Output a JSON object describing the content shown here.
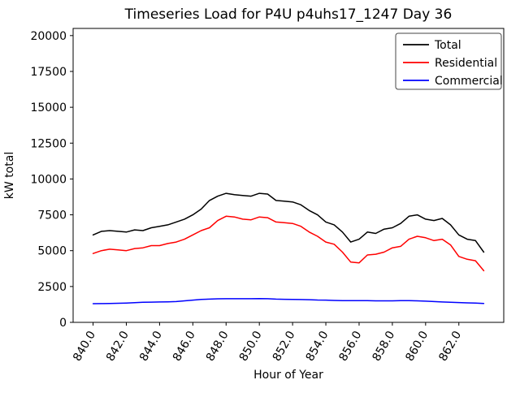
{
  "chart_data": {
    "type": "line",
    "title": "Timeseries Load for P4U p4uhs17_1247  Day 36",
    "xlabel": "Hour of Year",
    "ylabel": "kW total",
    "xlim": [
      838.8,
      864.7
    ],
    "ylim": [
      0,
      20500
    ],
    "grid": false,
    "legend_position": "upper right",
    "x_ticks": [
      840,
      842,
      844,
      846,
      848,
      850,
      852,
      854,
      856,
      858,
      860,
      862
    ],
    "x_tick_labels": [
      "840.0",
      "842.0",
      "844.0",
      "846.0",
      "848.0",
      "850.0",
      "852.0",
      "854.0",
      "856.0",
      "858.0",
      "860.0",
      "862.0"
    ],
    "y_ticks": [
      0,
      2500,
      5000,
      7500,
      10000,
      12500,
      15000,
      17500,
      20000
    ],
    "y_tick_labels": [
      "0",
      "2500",
      "5000",
      "7500",
      "10000",
      "12500",
      "15000",
      "17500",
      "20000"
    ],
    "x": [
      840,
      840.5,
      841,
      841.5,
      842,
      842.5,
      843,
      843.5,
      844,
      844.5,
      845,
      845.5,
      846,
      846.5,
      847,
      847.5,
      848,
      848.5,
      849,
      849.5,
      850,
      850.5,
      851,
      851.5,
      852,
      852.5,
      853,
      853.5,
      854,
      854.5,
      855,
      855.5,
      856,
      856.5,
      857,
      857.5,
      858,
      858.5,
      859,
      859.5,
      860,
      860.5,
      861,
      861.5,
      862,
      862.5,
      863,
      863.5
    ],
    "series": [
      {
        "name": "Total",
        "color": "#000000",
        "values": [
          6100,
          6350,
          6400,
          6350,
          6300,
          6450,
          6400,
          6600,
          6700,
          6800,
          7000,
          7200,
          7500,
          7900,
          8500,
          8800,
          9000,
          8900,
          8850,
          8800,
          9000,
          8950,
          8500,
          8450,
          8400,
          8200,
          7800,
          7500,
          7000,
          6800,
          6300,
          5600,
          5800,
          6300,
          6200,
          6500,
          6600,
          6900,
          7400,
          7500,
          7200,
          7100,
          7250,
          6800,
          6100,
          5800,
          5700,
          4900
        ]
      },
      {
        "name": "Residential",
        "color": "#ff0000",
        "values": [
          4800,
          5000,
          5100,
          5050,
          5000,
          5150,
          5200,
          5350,
          5350,
          5500,
          5600,
          5800,
          6100,
          6400,
          6600,
          7100,
          7400,
          7350,
          7200,
          7150,
          7350,
          7300,
          7000,
          6950,
          6900,
          6700,
          6300,
          6000,
          5600,
          5450,
          4900,
          4200,
          4150,
          4700,
          4750,
          4900,
          5200,
          5300,
          5800,
          6000,
          5900,
          5700,
          5800,
          5400,
          4600,
          4400,
          4300,
          3600
        ]
      },
      {
        "name": "Commercial",
        "color": "#0000ff",
        "values": [
          1300,
          1310,
          1320,
          1330,
          1350,
          1370,
          1400,
          1410,
          1420,
          1430,
          1450,
          1500,
          1550,
          1600,
          1620,
          1640,
          1650,
          1650,
          1650,
          1650,
          1660,
          1650,
          1620,
          1610,
          1600,
          1590,
          1580,
          1560,
          1550,
          1530,
          1520,
          1520,
          1520,
          1510,
          1500,
          1500,
          1500,
          1510,
          1520,
          1500,
          1480,
          1450,
          1420,
          1400,
          1380,
          1360,
          1350,
          1320
        ]
      }
    ]
  }
}
